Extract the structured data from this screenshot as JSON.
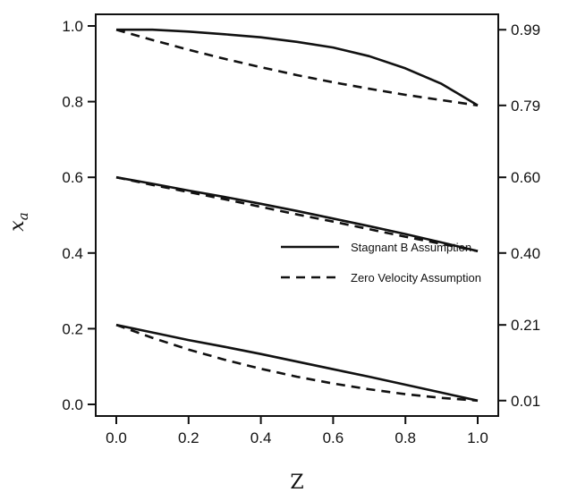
{
  "chart_data": {
    "type": "line",
    "title": "",
    "xlabel": "Z",
    "ylabel": "x",
    "ylabel_subscript": "a",
    "xlim": [
      0.0,
      1.0
    ],
    "ylim": [
      0.0,
      1.0
    ],
    "x_ticks": [
      "0.0",
      "0.2",
      "0.4",
      "0.6",
      "0.8",
      "1.0"
    ],
    "y_ticks": [
      "0.0",
      "0.2",
      "0.4",
      "0.6",
      "0.8",
      "1.0"
    ],
    "y2_ticks": [
      {
        "value": 0.01,
        "label": "0.01"
      },
      {
        "value": 0.21,
        "label": "0.21"
      },
      {
        "value": 0.4,
        "label": "0.40"
      },
      {
        "value": 0.6,
        "label": "0.60"
      },
      {
        "value": 0.79,
        "label": "0.79"
      },
      {
        "value": 0.99,
        "label": "0.99"
      }
    ],
    "grid": false,
    "legend_position": "center-right",
    "legend": [
      {
        "label": "Stagnant B Assumption",
        "style": "solid"
      },
      {
        "label": "Zero Velocity Assumption",
        "style": "dashed"
      }
    ],
    "series": [
      {
        "style": "solid",
        "x": [
          0.0,
          0.1,
          0.2,
          0.3,
          0.4,
          0.5,
          0.6,
          0.7,
          0.8,
          0.9,
          1.0
        ],
        "values": [
          0.99,
          0.99,
          0.985,
          0.978,
          0.97,
          0.958,
          0.943,
          0.92,
          0.888,
          0.847,
          0.79
        ]
      },
      {
        "style": "dashed",
        "x": [
          0.0,
          0.1,
          0.2,
          0.3,
          0.4,
          0.5,
          0.6,
          0.7,
          0.8,
          0.9,
          1.0
        ],
        "values": [
          0.99,
          0.963,
          0.937,
          0.913,
          0.891,
          0.87,
          0.851,
          0.834,
          0.818,
          0.804,
          0.79
        ]
      },
      {
        "style": "solid",
        "x": [
          0.0,
          0.1,
          0.2,
          0.3,
          0.4,
          0.5,
          0.6,
          0.7,
          0.8,
          0.9,
          1.0
        ],
        "values": [
          0.6,
          0.583,
          0.565,
          0.548,
          0.53,
          0.511,
          0.491,
          0.471,
          0.45,
          0.428,
          0.405
        ]
      },
      {
        "style": "dashed",
        "x": [
          0.0,
          0.1,
          0.2,
          0.3,
          0.4,
          0.5,
          0.6,
          0.7,
          0.8,
          0.9,
          1.0
        ],
        "values": [
          0.6,
          0.58,
          0.561,
          0.542,
          0.522,
          0.502,
          0.483,
          0.463,
          0.443,
          0.424,
          0.405
        ]
      },
      {
        "style": "solid",
        "x": [
          0.0,
          0.1,
          0.2,
          0.3,
          0.4,
          0.5,
          0.6,
          0.7,
          0.8,
          0.9,
          1.0
        ],
        "values": [
          0.21,
          0.19,
          0.17,
          0.152,
          0.133,
          0.113,
          0.093,
          0.073,
          0.052,
          0.031,
          0.01
        ]
      },
      {
        "style": "dashed",
        "x": [
          0.0,
          0.1,
          0.2,
          0.3,
          0.4,
          0.5,
          0.6,
          0.7,
          0.8,
          0.9,
          1.0
        ],
        "values": [
          0.21,
          0.176,
          0.145,
          0.118,
          0.094,
          0.073,
          0.055,
          0.04,
          0.027,
          0.017,
          0.01
        ]
      }
    ]
  }
}
